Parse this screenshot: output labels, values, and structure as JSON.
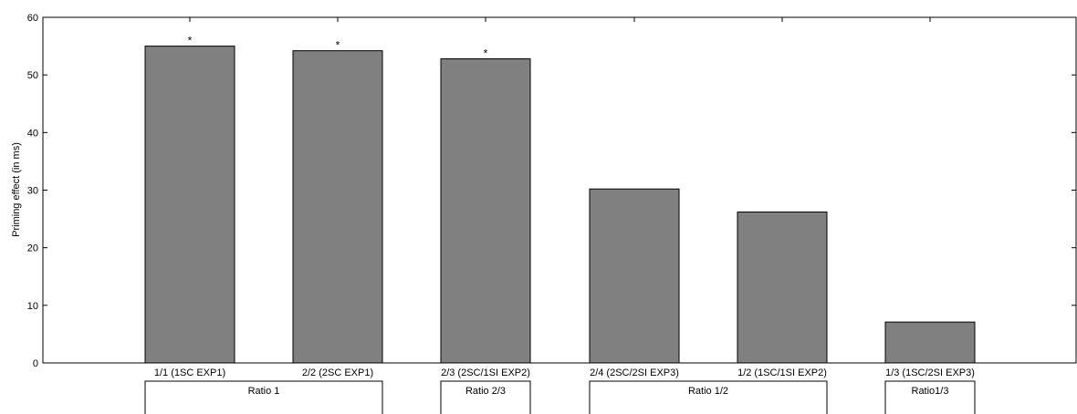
{
  "chart_data": {
    "type": "bar",
    "ylabel": "Priming effect (in ms)",
    "xlabel": "",
    "ylim": [
      0,
      60
    ],
    "yticks": [
      0,
      10,
      20,
      30,
      40,
      50,
      60
    ],
    "grid": false,
    "bar_color": "#808080",
    "categories": [
      "1/1 (1SC EXP1)",
      "2/2 (2SC EXP1)",
      "2/3 (2SC/1SI EXP2)",
      "2/4 (2SC/2SI EXP3)",
      "1/2 (1SC/1SI EXP2)",
      "1/3 (1SC/2SI EXP3)"
    ],
    "values": [
      55.0,
      54.2,
      52.8,
      30.2,
      26.2,
      7.1
    ],
    "significance": [
      "*",
      "*",
      "*",
      "",
      "",
      ""
    ],
    "groups": [
      {
        "label": "Ratio 1",
        "members": [
          0,
          1
        ]
      },
      {
        "label": "Ratio 2/3",
        "members": [
          2
        ]
      },
      {
        "label": "Ratio 1/2",
        "members": [
          3,
          4
        ]
      },
      {
        "label": "Ratio1/3",
        "members": [
          5
        ]
      }
    ]
  }
}
